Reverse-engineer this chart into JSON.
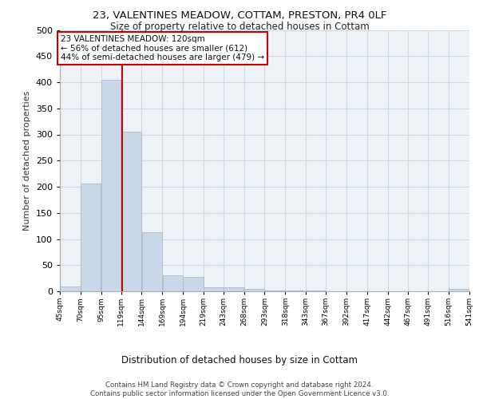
{
  "title_line1": "23, VALENTINES MEADOW, COTTAM, PRESTON, PR4 0LF",
  "title_line2": "Size of property relative to detached houses in Cottam",
  "xlabel": "Distribution of detached houses by size in Cottam",
  "ylabel": "Number of detached properties",
  "bar_edges": [
    45,
    70,
    95,
    119,
    144,
    169,
    194,
    219,
    243,
    268,
    293,
    318,
    343,
    367,
    392,
    417,
    442,
    467,
    491,
    516,
    541
  ],
  "bar_heights": [
    9,
    206,
    405,
    305,
    113,
    30,
    27,
    8,
    7,
    5,
    2,
    1,
    1,
    0,
    0,
    0,
    0,
    0,
    0,
    4
  ],
  "bar_color": "#c8d8e8",
  "bar_edge_color": "#a8bccf",
  "property_size": 120,
  "vline_color": "#cc0000",
  "annotation_text": "23 VALENTINES MEADOW: 120sqm\n← 56% of detached houses are smaller (612)\n44% of semi-detached houses are larger (479) →",
  "annotation_box_color": "white",
  "annotation_border_color": "#cc0000",
  "ylim": [
    0,
    500
  ],
  "yticks": [
    0,
    50,
    100,
    150,
    200,
    250,
    300,
    350,
    400,
    450,
    500
  ],
  "footer_text": "Contains HM Land Registry data © Crown copyright and database right 2024.\nContains public sector information licensed under the Open Government Licence v3.0.",
  "bg_color": "#edf2f7",
  "grid_color": "#ccd8e4"
}
